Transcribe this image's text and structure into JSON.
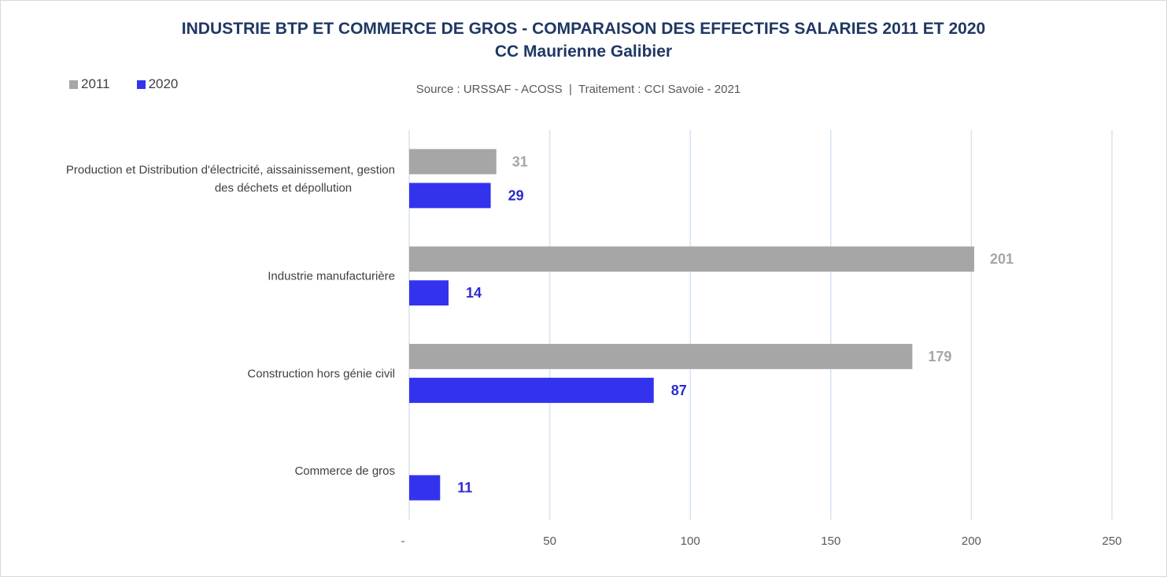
{
  "colors": {
    "series_2011": "#a6a6a6",
    "series_2020": "#3333ee",
    "label_2011": "#a6a6a6",
    "label_2020": "#2b2bd0",
    "grid": "#d6e3f0",
    "title": "#1f3864"
  },
  "chart_data": {
    "type": "bar",
    "orientation": "horizontal",
    "title": "INDUSTRIE BTP ET COMMERCE DE GROS - COMPARAISON DES EFFECTIFS SALARIES 2011 ET 2020",
    "subtitle": "CC Maurienne Galibier",
    "source": "Source : URSSAF - ACOSS  |  Traitement : CCI Savoie - 2021",
    "categories": [
      [
        "Production et Distribution d'électricité, aissainissement, gestion",
        "des déchets et dépollution"
      ],
      [
        "Industrie manufacturière"
      ],
      [
        "Construction hors génie civil"
      ],
      [
        "Commerce de gros"
      ]
    ],
    "series": [
      {
        "name": "2011",
        "values": [
          31,
          201,
          179,
          null
        ],
        "labels": [
          "31",
          "201",
          "179",
          ""
        ]
      },
      {
        "name": "2020",
        "values": [
          29,
          14,
          87,
          11
        ],
        "labels": [
          "29",
          "14",
          "87",
          "11"
        ]
      }
    ],
    "xlim": [
      0,
      250
    ],
    "xticks": [
      0,
      50,
      100,
      150,
      200,
      250
    ],
    "xtick_labels": [
      "-",
      "50",
      "100",
      "150",
      "200",
      "250"
    ],
    "grid": true,
    "legend_position": "top-left"
  }
}
